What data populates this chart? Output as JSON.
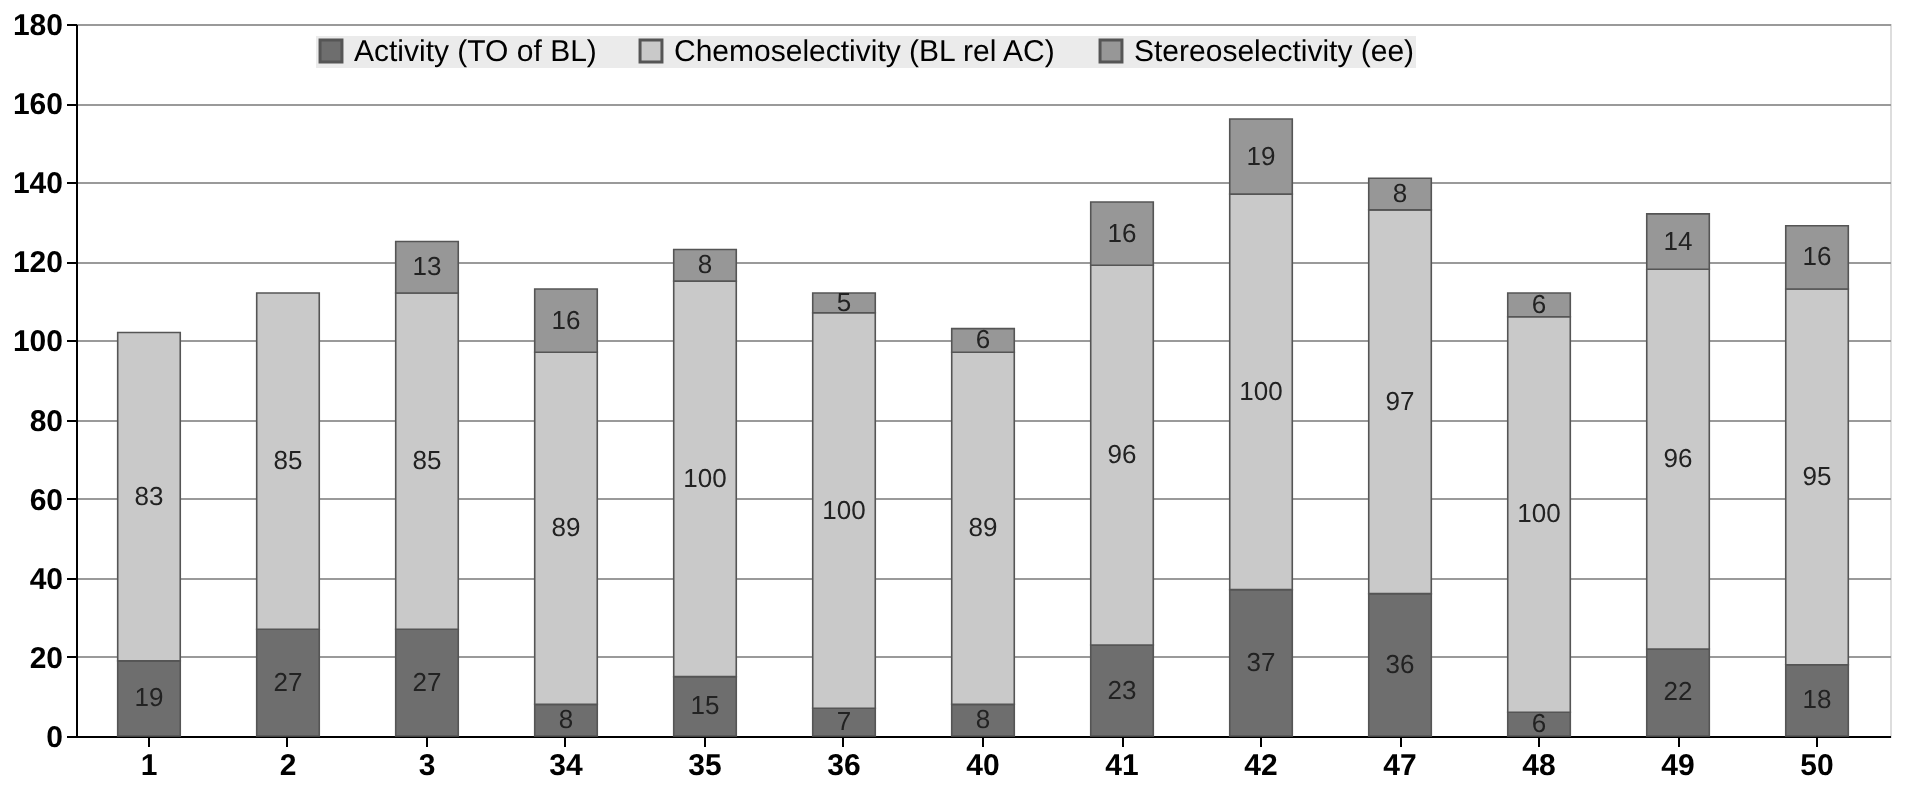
{
  "chart_data": {
    "type": "bar",
    "stacked": true,
    "categories": [
      "1",
      "2",
      "3",
      "34",
      "35",
      "36",
      "40",
      "41",
      "42",
      "47",
      "48",
      "49",
      "50"
    ],
    "series": [
      {
        "name": "Activity (TO of BL)",
        "color": "#6e6e6e",
        "values": [
          19,
          27,
          27,
          8,
          15,
          7,
          8,
          23,
          37,
          36,
          6,
          22,
          18
        ]
      },
      {
        "name": "Chemoselectivity (BL rel AC)",
        "color": "#c9c9c9",
        "values": [
          83,
          85,
          85,
          89,
          100,
          100,
          89,
          96,
          100,
          97,
          100,
          96,
          95
        ]
      },
      {
        "name": "Stereoselectivity (ee)",
        "color": "#979797",
        "values": [
          null,
          null,
          13,
          16,
          8,
          5,
          6,
          16,
          19,
          8,
          6,
          14,
          16
        ]
      }
    ],
    "ylim": [
      0,
      180
    ],
    "yticks": [
      0,
      20,
      40,
      60,
      80,
      100,
      120,
      140,
      160,
      180
    ],
    "grid": "y",
    "legend": "top",
    "data_labels": true
  }
}
